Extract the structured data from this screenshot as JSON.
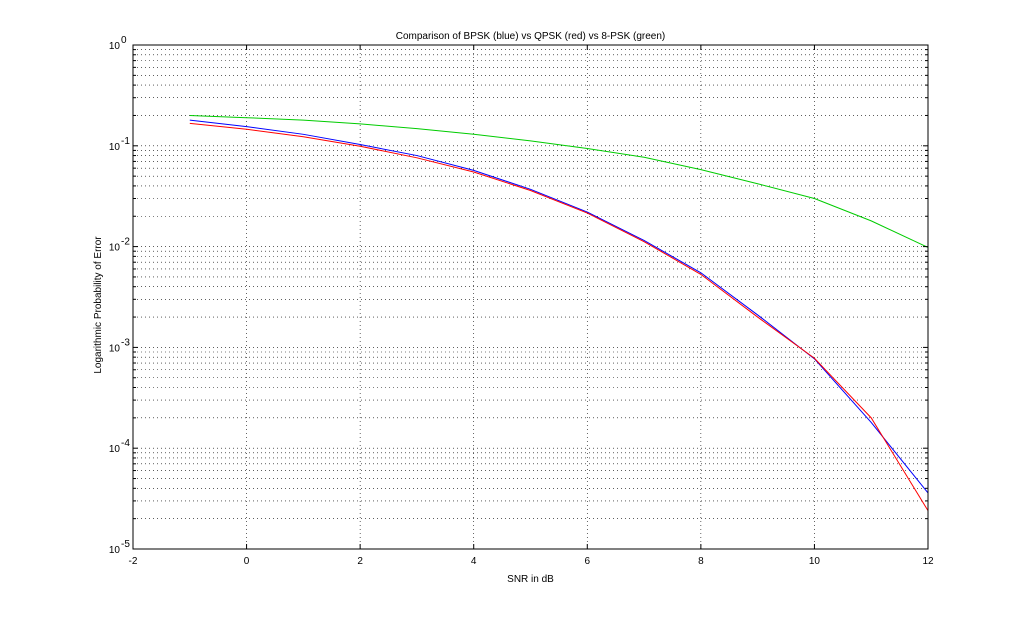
{
  "chart_data": {
    "type": "line",
    "title": "Comparison of BPSK (blue) vs QPSK (red) vs 8-PSK (green)",
    "xlabel": "SNR in dB",
    "ylabel": "Logarithmic Probability of Error",
    "xlim": [
      -2,
      12
    ],
    "ylim": [
      1e-05,
      1
    ],
    "yscale": "log",
    "grid": "on (major and minor, dotted)",
    "legend": "none",
    "x_ticks": [
      {
        "value": -2,
        "label": "-2"
      },
      {
        "value": 0,
        "label": "0"
      },
      {
        "value": 2,
        "label": "2"
      },
      {
        "value": 4,
        "label": "4"
      },
      {
        "value": 6,
        "label": "6"
      },
      {
        "value": 8,
        "label": "8"
      },
      {
        "value": 10,
        "label": "10"
      },
      {
        "value": 12,
        "label": "12"
      }
    ],
    "y_ticks": [
      {
        "value": 1e-05,
        "base": "10",
        "exp": "-5"
      },
      {
        "value": 0.0001,
        "base": "10",
        "exp": "-4"
      },
      {
        "value": 0.001,
        "base": "10",
        "exp": "-3"
      },
      {
        "value": 0.01,
        "base": "10",
        "exp": "-2"
      },
      {
        "value": 0.1,
        "base": "10",
        "exp": "-1"
      },
      {
        "value": 1,
        "base": "10",
        "exp": "0"
      }
    ],
    "x": [
      -1,
      0,
      1,
      2,
      3,
      4,
      5,
      6,
      7,
      8,
      9,
      10,
      11,
      12
    ],
    "series": [
      {
        "color": "#0000ff",
        "values": [
          0.18,
          0.155,
          0.13,
          0.103,
          0.08,
          0.057,
          0.037,
          0.022,
          0.0115,
          0.0055,
          0.0021,
          0.00077,
          0.00018,
          3.6e-05
        ]
      },
      {
        "color": "#ff0000",
        "values": [
          0.167,
          0.146,
          0.123,
          0.099,
          0.076,
          0.055,
          0.036,
          0.0215,
          0.0112,
          0.0053,
          0.002,
          0.00078,
          0.0002,
          2.4e-05
        ]
      },
      {
        "color": "#00cc00",
        "values": [
          0.2,
          0.19,
          0.18,
          0.165,
          0.148,
          0.13,
          0.112,
          0.094,
          0.077,
          0.058,
          0.042,
          0.03,
          0.018,
          0.0098
        ]
      }
    ]
  }
}
